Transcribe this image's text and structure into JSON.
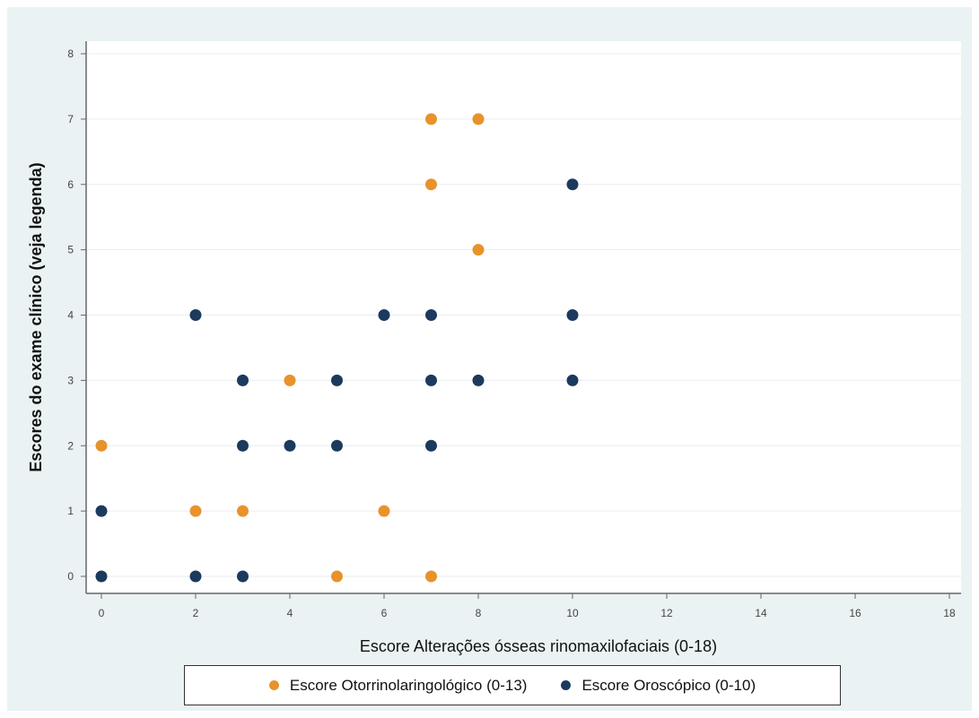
{
  "chart_data": {
    "type": "scatter",
    "xlabel": "Escore Alterações ósseas rinomaxilofaciais (0-18)",
    "ylabel": "Escores do exame clínico (veja legenda)",
    "xlim": [
      0,
      18
    ],
    "ylim": [
      0,
      8
    ],
    "x_ticks": [
      0,
      2,
      4,
      6,
      8,
      10,
      12,
      14,
      16,
      18
    ],
    "y_ticks": [
      0,
      1,
      2,
      3,
      4,
      5,
      6,
      7,
      8
    ],
    "grid": true,
    "legend_position": "bottom",
    "series": [
      {
        "name": "Escore Otorrinolaringológico (0-13)",
        "color": "#e8922b",
        "points": [
          [
            0,
            2
          ],
          [
            2,
            1
          ],
          [
            3,
            1
          ],
          [
            4,
            3
          ],
          [
            5,
            0
          ],
          [
            6,
            1
          ],
          [
            7,
            0
          ],
          [
            7,
            6
          ],
          [
            7,
            7
          ],
          [
            8,
            5
          ],
          [
            8,
            7
          ]
        ]
      },
      {
        "name": "Escore Oroscópico (0-10)",
        "color": "#1c3a5e",
        "points": [
          [
            0,
            0
          ],
          [
            0,
            1
          ],
          [
            2,
            0
          ],
          [
            2,
            4
          ],
          [
            3,
            0
          ],
          [
            3,
            2
          ],
          [
            3,
            3
          ],
          [
            4,
            2
          ],
          [
            5,
            2
          ],
          [
            5,
            3
          ],
          [
            6,
            4
          ],
          [
            7,
            2
          ],
          [
            7,
            3
          ],
          [
            7,
            4
          ],
          [
            8,
            3
          ],
          [
            10,
            3
          ],
          [
            10,
            4
          ],
          [
            10,
            6
          ]
        ]
      }
    ]
  }
}
